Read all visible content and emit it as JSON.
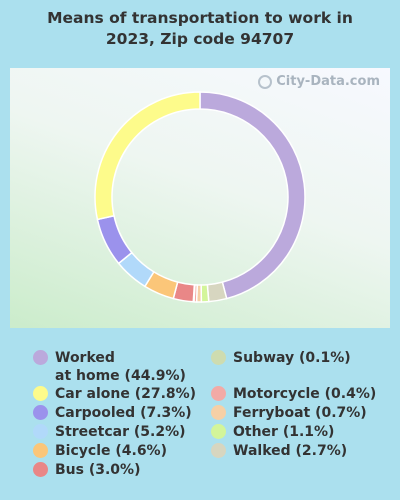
{
  "chart_data": {
    "type": "pie",
    "title": "Means of transportation to work in 2023, Zip code 94707",
    "slices": [
      {
        "label": "Worked at home",
        "value": 44.9,
        "display": "Worked at home (44.9%)",
        "color": "#bba9dc"
      },
      {
        "label": "Walked",
        "value": 2.7,
        "display": "Walked (2.7%)",
        "color": "#d7d6c0"
      },
      {
        "label": "Other",
        "value": 1.1,
        "display": "Other (1.1%)",
        "color": "#d3f59a"
      },
      {
        "label": "Ferryboat",
        "value": 0.7,
        "display": "Ferryboat (0.7%)",
        "color": "#f6d0a6"
      },
      {
        "label": "Motorcycle",
        "value": 0.4,
        "display": "Motorcycle (0.4%)",
        "color": "#f2aaa6"
      },
      {
        "label": "Subway",
        "value": 0.1,
        "display": "Subway (0.1%)",
        "color": "#cedcb0"
      },
      {
        "label": "Bus",
        "value": 3.0,
        "display": "Bus (3.0%)",
        "color": "#e98787"
      },
      {
        "label": "Bicycle",
        "value": 4.6,
        "display": "Bicycle (4.6%)",
        "color": "#fbc679"
      },
      {
        "label": "Streetcar",
        "value": 5.2,
        "display": "Streetcar (5.2%)",
        "color": "#b1d9fa"
      },
      {
        "label": "Carpooled",
        "value": 7.3,
        "display": "Carpooled (7.3%)",
        "color": "#9b92ec"
      },
      {
        "label": "Car alone",
        "value": 27.8,
        "display": "Car alone (27.8%)",
        "color": "#fdfb8b"
      }
    ],
    "legend_left": [
      {
        "text": "Worked at home (44.9%)",
        "lines": [
          "Worked",
          "at home (44.9%)"
        ],
        "color": "#bba9dc"
      },
      {
        "text": "Car alone (27.8%)",
        "color": "#fdfb8b"
      },
      {
        "text": "Carpooled (7.3%)",
        "color": "#9b92ec"
      },
      {
        "text": "Streetcar (5.2%)",
        "color": "#b1d9fa"
      },
      {
        "text": "Bicycle (4.6%)",
        "color": "#fbc679"
      },
      {
        "text": "Bus (3.0%)",
        "color": "#e98787"
      }
    ],
    "legend_right": [
      {
        "text": "Subway (0.1%)",
        "color": "#cedcb0"
      },
      {
        "text": "Motorcycle (0.4%)",
        "color": "#f2aaa6"
      },
      {
        "text": "Ferryboat (0.7%)",
        "color": "#f6d0a6"
      },
      {
        "text": "Other (1.1%)",
        "color": "#d3f59a"
      },
      {
        "text": "Walked (2.7%)",
        "color": "#d7d6c0"
      }
    ],
    "legend_placement": "bottom"
  },
  "header": {
    "title_line1": "Means of transportation to work in",
    "title_line2": "2023, Zip code 94707"
  },
  "watermark": {
    "text": "City-Data.com"
  }
}
